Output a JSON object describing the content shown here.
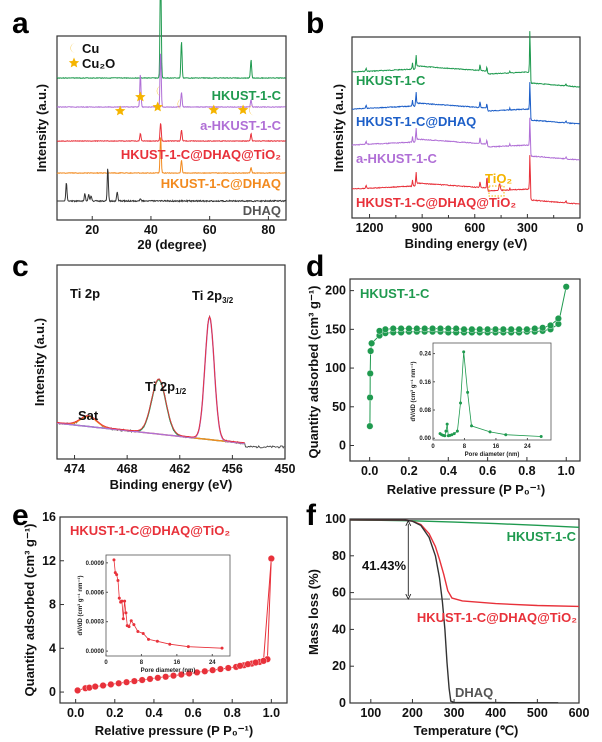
{
  "panels": {
    "a": {
      "letter": "a"
    },
    "b": {
      "letter": "b"
    },
    "c": {
      "letter": "c"
    },
    "d": {
      "letter": "d"
    },
    "e": {
      "letter": "e"
    },
    "f": {
      "letter": "f"
    }
  },
  "colors": {
    "green": "#1f9a4f",
    "purple": "#b06fd6",
    "red": "#e8313a",
    "orange": "#f28a1e",
    "black": "#333333",
    "blue": "#1d5fc8",
    "gold": "#f5b400"
  },
  "chart_data": [
    {
      "id": "a",
      "type": "line",
      "title": "",
      "xlabel": "2θ (degree)",
      "ylabel": "Intensity (a.u.)",
      "xlim": [
        8,
        86
      ],
      "xticks": [
        20,
        40,
        60,
        80
      ],
      "legend": [
        {
          "symbol": "crescent",
          "label": "Cu"
        },
        {
          "symbol": "star",
          "label": "Cu₂O"
        }
      ],
      "series": [
        {
          "name": "HKUST-1-C",
          "color": "green",
          "offset": 0.78,
          "peaks": [
            [
              43.3,
              0.62
            ],
            [
              50.4,
              0.2
            ],
            [
              74.1,
              0.1
            ]
          ]
        },
        {
          "name": "a-HKUST-1-C",
          "color": "purple",
          "offset": 0.6,
          "peaks": [
            [
              36.4,
              0.18
            ],
            [
              43.3,
              0.3
            ],
            [
              50.4,
              0.08
            ],
            [
              74.1,
              0.04
            ]
          ]
        },
        {
          "name": "HKUST-1-C@DHAQ@TiO₂",
          "color": "red",
          "offset": 0.43,
          "peaks": [
            [
              36.4,
              0.04
            ],
            [
              43.3,
              0.1
            ],
            [
              50.4,
              0.06
            ],
            [
              74.1,
              0.04
            ]
          ]
        },
        {
          "name": "HKUST-1-C@DHAQ",
          "color": "orange",
          "offset": 0.26,
          "peaks": [
            [
              43.3,
              0.2
            ],
            [
              50.4,
              0.07
            ],
            [
              74.1,
              0.03
            ]
          ]
        },
        {
          "name": "DHAQ",
          "color": "black",
          "offset": 0.1,
          "peaks": [
            [
              11.2,
              0.1
            ],
            [
              17.5,
              0.04
            ],
            [
              18.8,
              0.035
            ],
            [
              19.6,
              0.03
            ],
            [
              25.3,
              0.18
            ],
            [
              28.5,
              0.05
            ],
            [
              36.4,
              0.01
            ]
          ]
        }
      ],
      "annotations": {
        "stars_2theta": [
          29.5,
          36.4,
          42.3,
          61.4,
          72.4
        ],
        "crescents_2theta": [
          43.3,
          50.4,
          74.1
        ]
      }
    },
    {
      "id": "b",
      "type": "line",
      "xlabel": "Binding energy (eV)",
      "ylabel": "Intensity (a.u.)",
      "xlim": [
        1300,
        0
      ],
      "xticks": [
        1200,
        900,
        600,
        300,
        0
      ],
      "series": [
        {
          "name": "HKUST-1-C",
          "color": "green"
        },
        {
          "name": "HKUST-1-C@DHAQ",
          "color": "blue"
        },
        {
          "name": "a-HKUST-1-C",
          "color": "purple"
        },
        {
          "name": "HKUST-1-C@DHAQ@TiO₂",
          "color": "red"
        }
      ],
      "annotations": {
        "box_label": "TiO₂",
        "box_range_eV": [
          530,
          450
        ]
      }
    },
    {
      "id": "c",
      "type": "line",
      "title": "Ti 2p",
      "xlabel": "Binding energy (eV)",
      "ylabel": "Intensity (a.u.)",
      "xlim": [
        476,
        450
      ],
      "xticks": [
        474,
        468,
        462,
        456,
        450
      ],
      "peaks": [
        {
          "label": "Ti 2p3/2",
          "center": 458.6,
          "color": "purple"
        },
        {
          "label": "Ti 2p1/2",
          "center": 464.4,
          "color": "green"
        },
        {
          "label": "Sat",
          "center": 472.4,
          "color": "orange"
        }
      ]
    },
    {
      "id": "d",
      "type": "scatter",
      "series_label": "HKUST-1-C",
      "xlabel": "Relative pressure (P P₀⁻¹)",
      "ylabel": "Quantity adsorbed (cm³ g⁻¹)",
      "xlim": [
        -0.1,
        1.07
      ],
      "ylim": [
        -20,
        215
      ],
      "xticks": [
        "0.0",
        "0.2",
        "0.4",
        "0.6",
        "0.8",
        "1.0"
      ],
      "yticks": [
        "0",
        "50",
        "100",
        "150",
        "200"
      ],
      "adsorption": {
        "x": [
          0.001,
          0.002,
          0.003,
          0.005,
          0.01,
          0.05,
          0.08,
          0.12,
          0.16,
          0.2,
          0.24,
          0.28,
          0.32,
          0.36,
          0.4,
          0.44,
          0.48,
          0.52,
          0.56,
          0.6,
          0.64,
          0.68,
          0.72,
          0.76,
          0.8,
          0.84,
          0.88,
          0.92,
          0.96,
          1.0
        ],
        "y": [
          25,
          62,
          93,
          122,
          132,
          142,
          145,
          146,
          146,
          147,
          147,
          147,
          147,
          147,
          146,
          146,
          146,
          146,
          146,
          146,
          146,
          146,
          146,
          146,
          147,
          147,
          148,
          150,
          157,
          205
        ]
      },
      "desorption": {
        "x": [
          0.96,
          0.92,
          0.88,
          0.84,
          0.8,
          0.76,
          0.72,
          0.68,
          0.64,
          0.6,
          0.56,
          0.52,
          0.48,
          0.44,
          0.4,
          0.36,
          0.32,
          0.28,
          0.24,
          0.2,
          0.16,
          0.12,
          0.08,
          0.05
        ],
        "y": [
          164,
          155,
          152,
          151,
          150,
          150,
          150,
          150,
          150,
          150,
          150,
          150,
          150,
          151,
          151,
          151,
          151,
          151,
          151,
          151,
          151,
          151,
          150,
          148
        ]
      },
      "inset": {
        "xlabel": "Pore diameter (nm)",
        "ylabel": "dV/dD (cm³ g⁻¹ nm⁻¹)",
        "xlim": [
          0,
          30
        ],
        "ylim": [
          -0.005,
          0.27
        ],
        "xticks": [
          "0",
          "8",
          "16",
          "24"
        ],
        "yticks": [
          "0.00",
          "0.08",
          "0.16",
          "0.24"
        ],
        "x": [
          1.8,
          2.2,
          2.6,
          3.0,
          3.3,
          3.6,
          3.9,
          4.3,
          4.8,
          5.4,
          6.2,
          7.0,
          7.8,
          8.8,
          9.8,
          14.5,
          18.5,
          27.5
        ],
        "y": [
          0.013,
          0.01,
          0.008,
          0.007,
          0.02,
          0.04,
          0.007,
          0.008,
          0.01,
          0.013,
          0.02,
          0.1,
          0.245,
          0.13,
          0.035,
          0.018,
          0.01,
          0.005
        ]
      }
    },
    {
      "id": "e",
      "type": "scatter",
      "series_label": "HKUST-1-C@DHAQ@TiO₂",
      "xlabel": "Relative pressure (P P₀⁻¹)",
      "ylabel": "Quantity adsorbed (cm³ g⁻¹)",
      "xlim": [
        -0.08,
        1.08
      ],
      "ylim": [
        -1,
        16
      ],
      "xticks": [
        "0.0",
        "0.2",
        "0.4",
        "0.6",
        "0.8",
        "1.0"
      ],
      "yticks": [
        "0",
        "4",
        "8",
        "12",
        "16"
      ],
      "adsorption": {
        "x": [
          0.01,
          0.05,
          0.07,
          0.1,
          0.14,
          0.18,
          0.22,
          0.26,
          0.3,
          0.34,
          0.38,
          0.42,
          0.46,
          0.5,
          0.54,
          0.58,
          0.62,
          0.66,
          0.7,
          0.74,
          0.78,
          0.82,
          0.86,
          0.9,
          0.94,
          0.98,
          1.0
        ],
        "y": [
          0.15,
          0.35,
          0.4,
          0.5,
          0.6,
          0.7,
          0.8,
          0.9,
          1.0,
          1.1,
          1.2,
          1.3,
          1.4,
          1.5,
          1.6,
          1.7,
          1.8,
          1.9,
          2.0,
          2.1,
          2.2,
          2.3,
          2.45,
          2.6,
          2.75,
          3.0,
          12.2
        ]
      },
      "desorption": {
        "x": [
          1.0,
          0.96,
          0.92,
          0.88,
          0.84
        ],
        "y": [
          12.2,
          2.85,
          2.7,
          2.55,
          2.4
        ]
      },
      "inset": {
        "xlabel": "Pore diameter (nm)",
        "ylabel": "dV/dD (cm³ g⁻¹ nm⁻¹)",
        "xlim": [
          0,
          28
        ],
        "ylim": [
          -5e-05,
          0.00098
        ],
        "xticks": [
          "0",
          "8",
          "16",
          "24"
        ],
        "yticks": [
          "0.0000",
          "0.0003",
          "0.0006",
          "0.0009"
        ],
        "x": [
          1.8,
          2.1,
          2.4,
          2.7,
          3.0,
          3.3,
          3.6,
          3.9,
          4.2,
          4.5,
          4.8,
          5.2,
          5.7,
          6.3,
          7.2,
          8.4,
          9.6,
          11.6,
          14.4,
          18.6,
          26.2
        ],
        "y": [
          0.00093,
          0.0008,
          0.00078,
          0.00072,
          0.00054,
          0.0005,
          0.00051,
          0.00033,
          0.00051,
          0.00039,
          0.00026,
          0.00025,
          0.00031,
          0.00027,
          0.0002,
          0.00018,
          0.00012,
          0.0001,
          7e-05,
          4.5e-05,
          3e-05
        ]
      }
    },
    {
      "id": "f",
      "type": "line",
      "xlabel": "Temperature (℃)",
      "ylabel": "Mass loss (%)",
      "xlim": [
        50,
        600
      ],
      "ylim": [
        0,
        100
      ],
      "xticks": [
        "100",
        "200",
        "300",
        "400",
        "500",
        "600"
      ],
      "yticks": [
        "0",
        "20",
        "40",
        "60",
        "80",
        "100"
      ],
      "series": [
        {
          "name": "HKUST-1-C",
          "color": "green",
          "x": [
            50,
            200,
            300,
            400,
            500,
            600
          ],
          "y": [
            99.5,
            99,
            98.3,
            97.5,
            96.6,
            95.5
          ]
        },
        {
          "name": "HKUST-1-C@DHAQ@TiO₂",
          "color": "red",
          "x": [
            50,
            180,
            200,
            220,
            240,
            255,
            265,
            275,
            285,
            295,
            320,
            400,
            500,
            600
          ],
          "y": [
            99.5,
            99.4,
            98.8,
            97,
            92,
            85,
            78,
            70,
            61,
            57,
            55.5,
            54,
            53,
            52.5
          ]
        },
        {
          "name": "DHAQ",
          "color": "black",
          "x": [
            50,
            180,
            200,
            220,
            240,
            255,
            265,
            272,
            278,
            283,
            288,
            292,
            300,
            400,
            550
          ],
          "y": [
            99.5,
            99.4,
            98.8,
            96.5,
            90,
            80,
            68,
            55,
            40,
            22,
            8,
            1,
            0.3,
            0.2,
            0.1
          ]
        }
      ],
      "annotations": {
        "mass_loss_label": "41.43%",
        "reference_line_y": 56.5,
        "arrow_x": 190
      }
    }
  ],
  "labels": {
    "a": {
      "cu": "Cu",
      "cu2o": "Cu₂O",
      "s1": "HKUST-1-C",
      "s2": "a-HKUST-1-C",
      "s3": "HKUST-1-C@DHAQ@TiO₂",
      "s4": "HKUST-1-C@DHAQ",
      "s5": "DHAQ"
    },
    "b": {
      "s1": "HKUST-1-C",
      "s2": "HKUST-1-C@DHAQ",
      "s3": "a-HKUST-1-C",
      "s4": "HKUST-1-C@DHAQ@TiO₂",
      "box": "TiO₂"
    },
    "c": {
      "title": "Ti 2p",
      "p32": "Ti 2p3/2",
      "p12": "Ti 2p1/2",
      "sat": "Sat"
    },
    "d": {
      "series": "HKUST-1-C"
    },
    "e": {
      "series": "HKUST-1-C@DHAQ@TiO₂"
    },
    "f": {
      "s1": "HKUST-1-C",
      "s2": "HKUST-1-C@DHAQ@TiO₂",
      "s3": "DHAQ",
      "pct": "41.43%"
    }
  }
}
